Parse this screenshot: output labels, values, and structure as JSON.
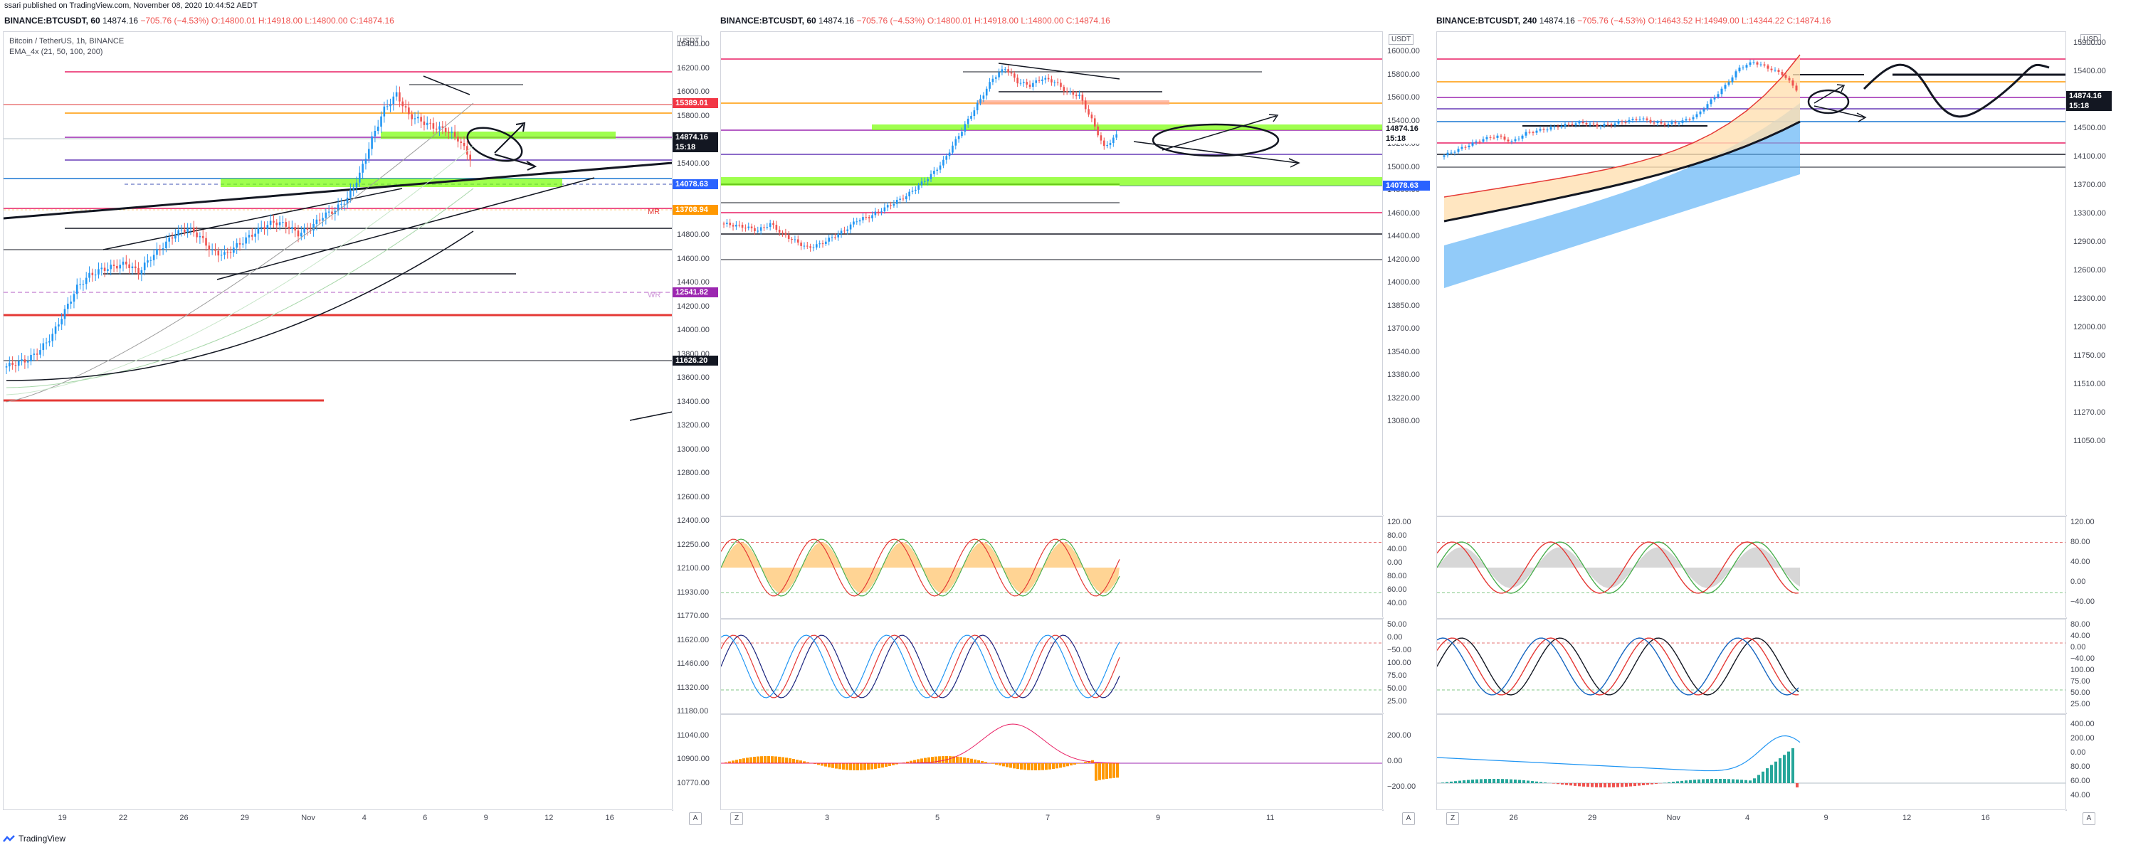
{
  "attribution": "ssari published on TradingView.com, November 08, 2020 10:44:52 AEDT",
  "footer": {
    "brand": "TradingView"
  },
  "colors": {
    "up": "#26a69a",
    "down": "#ef5350",
    "candle_up": "#2196f3",
    "candle_down": "#ef5350"
  },
  "panels": [
    {
      "header": {
        "symbol": "BINANCE:BTCUSDT, 60",
        "last": "14874.16",
        "change": "−705.76 (−4.53%)",
        "o": "O:14800.01",
        "h": "H:14918.00",
        "l": "L:14800.00",
        "c": "C:14874.16"
      },
      "legend": [
        "Bitcoin / TetherUS, 1h, BINANCE",
        "EMA_4x (21, 50, 100, 200)"
      ],
      "currency": "USDT",
      "price_ticks": [
        "16400.00",
        "16200.00",
        "16000.00",
        "15800.00",
        "15600.00",
        "15400.00",
        "15200.00",
        "15000.00",
        "14800.00",
        "14600.00",
        "14400.00",
        "14200.00",
        "14000.00",
        "13800.00",
        "13600.00",
        "13400.00",
        "13200.00",
        "13000.00",
        "12800.00",
        "12600.00",
        "12400.00",
        "12250.00",
        "12100.00",
        "11930.00",
        "11770.00",
        "11620.00",
        "11460.00",
        "11320.00",
        "11180.00",
        "11040.00",
        "10900.00",
        "10770.00"
      ],
      "tags": [
        {
          "text": "15389.01",
          "color": "#f23645"
        },
        {
          "text": "14874.16",
          "color": "#131722"
        },
        {
          "text": "15:18",
          "color": "#131722"
        },
        {
          "text": "14078.63",
          "color": "#2962ff"
        },
        {
          "text": "13708.94",
          "color": "#ff9800"
        },
        {
          "text": "12541.82",
          "color": "#9c27b0"
        },
        {
          "text": "11626.20",
          "color": "#131722"
        }
      ],
      "side_labels": [
        "MR",
        "WR"
      ],
      "time_ticks": [
        "19",
        "22",
        "26",
        "29",
        "Nov",
        "4",
        "6",
        "9",
        "12",
        "16"
      ],
      "badge": "A"
    },
    {
      "header": {
        "symbol": "BINANCE:BTCUSDT, 60",
        "last": "14874.16",
        "change": "−705.76 (−4.53%)",
        "o": "O:14800.01",
        "h": "H:14918.00",
        "l": "L:14800.00",
        "c": "C:14874.16"
      },
      "currency": "USDT",
      "price_ticks": [
        "16000.00",
        "15800.00",
        "15600.00",
        "15400.00",
        "15200.00",
        "15000.00",
        "14800.00",
        "14600.00",
        "14400.00",
        "14200.00",
        "14000.00",
        "13850.00",
        "13700.00",
        "13540.00",
        "13380.00",
        "13220.00",
        "13080.00"
      ],
      "tags": [
        {
          "text": "14874.16",
          "color": "#ffffff"
        },
        {
          "text": "15:18",
          "color": "#ffffff"
        },
        {
          "text": "14078.63",
          "color": "#2962ff"
        }
      ],
      "osc1_ticks": [
        "120.00",
        "80.00",
        "40.00",
        "0.00",
        "80.00",
        "60.00",
        "40.00"
      ],
      "osc2_ticks": [
        "50.00",
        "0.00",
        "−50.00",
        "100.00",
        "75.00",
        "50.00",
        "25.00"
      ],
      "osc3_ticks": [
        "200.00",
        "0.00",
        "−200.00"
      ],
      "time_ticks": [
        "3",
        "5",
        "7",
        "9",
        "11"
      ],
      "badges": [
        "Z",
        "A"
      ]
    },
    {
      "header": {
        "symbol": "BINANCE:BTCUSDT, 240",
        "last": "14874.16",
        "change": "−705.76 (−4.53%)",
        "o": "O:14643.52",
        "h": "H:14949.00",
        "l": "L:14344.22",
        "c": "C:14874.16"
      },
      "currency": "USD",
      "price_ticks": [
        "15900.00",
        "15400.00",
        "15000.00",
        "14500.00",
        "14100.00",
        "13700.00",
        "13300.00",
        "12900.00",
        "12600.00",
        "12300.00",
        "12000.00",
        "11750.00",
        "11510.00",
        "11270.00",
        "11050.00"
      ],
      "tags": [
        {
          "text": "14874.16",
          "color": "#131722"
        },
        {
          "text": "15:18",
          "color": "#131722"
        }
      ],
      "osc1_ticks": [
        "120.00",
        "80.00",
        "40.00",
        "0.00",
        "−40.00"
      ],
      "osc2_ticks": [
        "80.00",
        "40.00",
        "0.00",
        "−40.00",
        "100.00",
        "75.00",
        "50.00",
        "25.00"
      ],
      "osc3_ticks": [
        "400.00",
        "200.00",
        "0.00",
        "80.00",
        "60.00",
        "40.00"
      ],
      "time_ticks": [
        "26",
        "29",
        "Nov",
        "4",
        "9",
        "12",
        "16"
      ],
      "badges": [
        "Z",
        "A"
      ]
    }
  ],
  "chart_data": [
    {
      "type": "candlestick",
      "title": "BINANCE:BTCUSDT, 60",
      "ylim": [
        10770,
        16400
      ],
      "close": [
        11350,
        11420,
        11480,
        11650,
        11900,
        12300,
        12700,
        12900,
        13000,
        13050,
        13100,
        12950,
        13200,
        13400,
        13600,
        13700,
        13550,
        13300,
        13250,
        13400,
        13550,
        13700,
        13800,
        13750,
        13600,
        13700,
        13900,
        14000,
        14200,
        14600,
        15200,
        15700,
        15950,
        15600,
        15500,
        15400,
        15350,
        15200,
        14874
      ]
    },
    {
      "type": "candlestick",
      "title": "BINANCE:BTCUSDT, 60",
      "ylim": [
        13080,
        16000
      ],
      "close": [
        13600,
        13580,
        13550,
        13500,
        13600,
        13450,
        13350,
        13250,
        13300,
        13400,
        13500,
        13650,
        13700,
        13800,
        13900,
        14000,
        14150,
        14300,
        14500,
        14800,
        15100,
        15400,
        15700,
        15850,
        15650,
        15600,
        15700,
        15650,
        15500,
        15450,
        15100,
        14700,
        14874
      ]
    },
    {
      "type": "candlestick",
      "title": "BINANCE:BTCUSDT, 240",
      "ylim": [
        11050,
        15900
      ],
      "close": [
        12600,
        12800,
        13000,
        13200,
        13300,
        13100,
        13400,
        13500,
        13600,
        13700,
        13750,
        13650,
        13700,
        13800,
        13900,
        13750,
        13700,
        13800,
        14000,
        14500,
        15000,
        15600,
        15800,
        15600,
        15400,
        14874
      ]
    }
  ]
}
